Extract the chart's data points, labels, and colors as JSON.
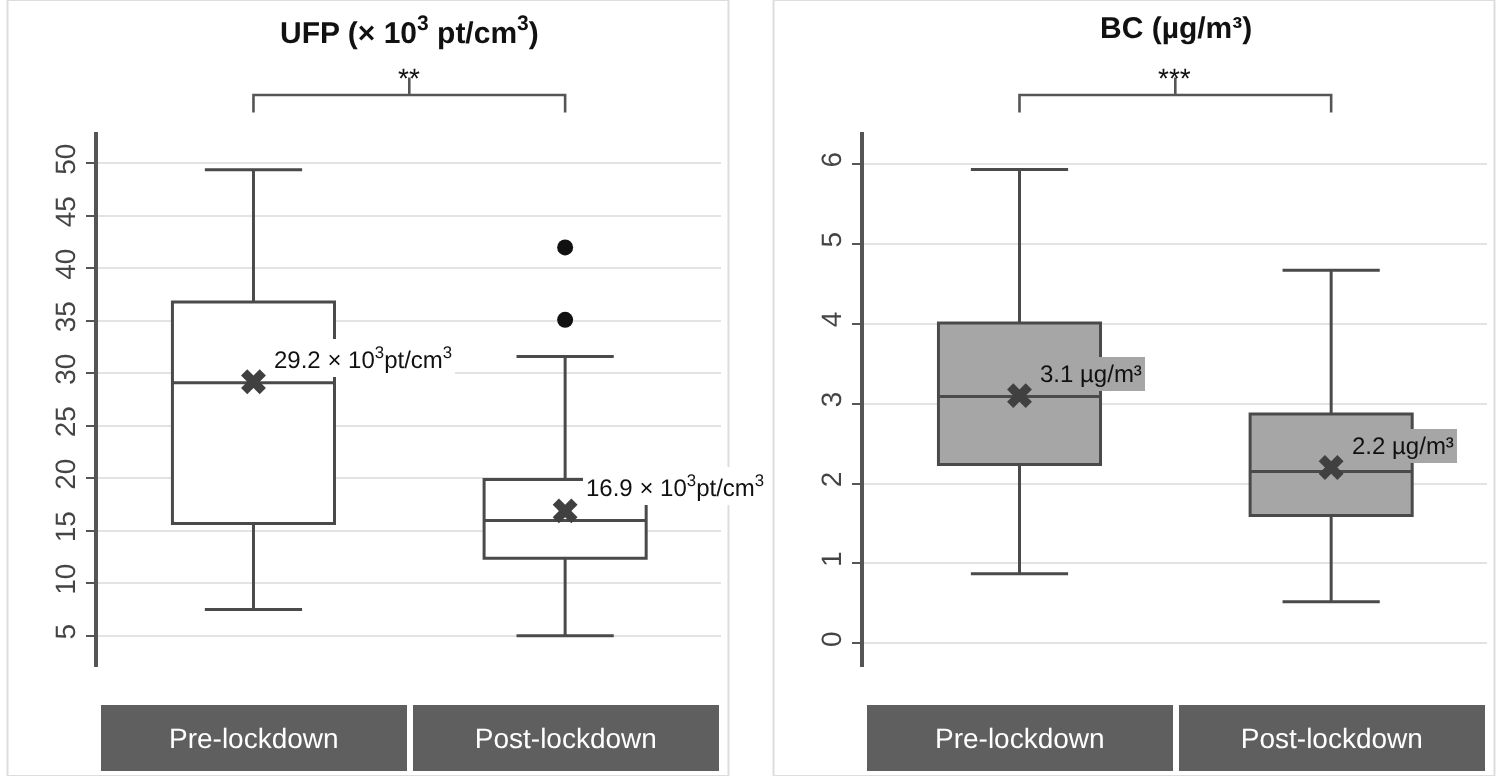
{
  "chart_data": [
    {
      "type": "box",
      "title": "UFP (× 10$^{3}$ pt/cm$^{3}$)",
      "categories": [
        "Pre-lockdown",
        "Post-lockdown"
      ],
      "color": "#ffffff",
      "ylim": [
        2,
        53
      ],
      "yticks": [
        5,
        10,
        15,
        20,
        25,
        30,
        35,
        40,
        45,
        50
      ],
      "grid": "y",
      "boxes": [
        {
          "low": 7.5,
          "q1": 15.7,
          "median": 29.1,
          "q3": 36.8,
          "high": 49.4,
          "mean": 29.2
        },
        {
          "low": 5,
          "q1": 12.4,
          "median": 16.0,
          "q3": 19.9,
          "high": 31.6,
          "mean": 16.9,
          "outliers": [
            42.0,
            35.1
          ]
        }
      ],
      "annotations": [
        "**",
        {
          "text": "29.2 × 10$^{3}$pt/cm$^{3}$",
          "x": "Pre-lockdown",
          "y": 29.2
        },
        {
          "text": "16.9 × 10$^{3}$pt/cm$^{3}$",
          "x": "Post-lockdown",
          "y": 16.9
        }
      ]
    },
    {
      "type": "box",
      "title": "BC (µg/m³)",
      "categories": [
        "Pre-lockdown",
        "Post-lockdown"
      ],
      "color": "#a6a6a6",
      "ylim": [
        -0.3,
        6.4
      ],
      "yticks": [
        0,
        1,
        2,
        3,
        4,
        5,
        6
      ],
      "grid": "y",
      "boxes": [
        {
          "low": 0.87,
          "q1": 2.24,
          "median": 3.09,
          "q3": 4.01,
          "high": 5.93,
          "mean": 3.1
        },
        {
          "low": 0.52,
          "q1": 1.6,
          "median": 2.15,
          "q3": 2.87,
          "high": 4.67,
          "mean": 2.2
        }
      ],
      "annotations": [
        "***",
        {
          "text": "3.1 µg/m³",
          "x": "Pre-lockdown",
          "y": 3.1
        },
        {
          "text": "2.2 µg/m³",
          "x": "Post-lockdown",
          "y": 2.2
        }
      ]
    }
  ]
}
